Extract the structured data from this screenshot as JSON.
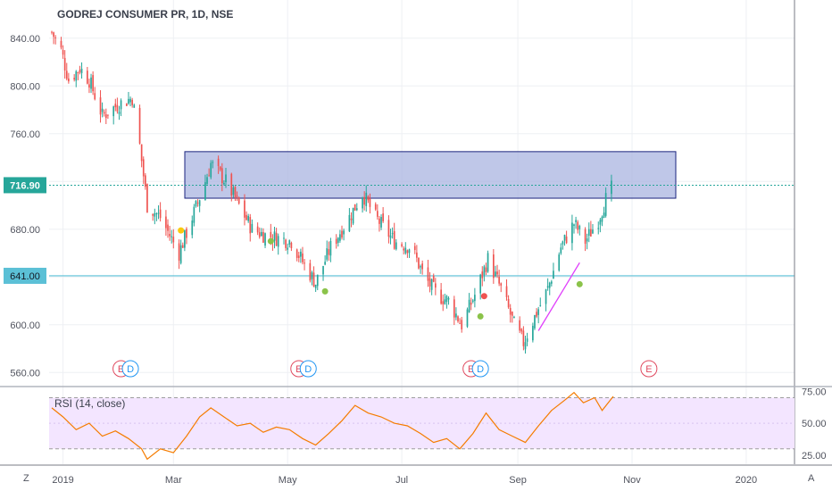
{
  "chart_title": "GODREJ CONSUMER PR, 1D, NSE",
  "rsi_title": "RSI (14, close)",
  "current_price_label": "716.90",
  "support_price_label": "641.00",
  "corner_left": "Z",
  "corner_right": "A",
  "colors": {
    "up": "#26a69a",
    "down": "#ef5350",
    "rsi_line": "#f57c00",
    "rsi_band": "#f3e5ff",
    "zone_fill": "#aab4e0",
    "zone_border": "#1a237e",
    "support_line": "#5bc0d6",
    "price_line": "#26a69a",
    "trend_line": "#e040fb"
  },
  "chart_data": [
    {
      "type": "candlestick",
      "title": "GODREJ CONSUMER PR, 1D, NSE",
      "y_ticks": [
        560,
        600,
        640,
        680,
        720,
        760,
        800,
        840
      ],
      "y_tick_labels": [
        "560.00",
        "600.00",
        "",
        "680.00",
        "",
        "760.00",
        "800.00",
        "840.00"
      ],
      "ylim": [
        549,
        872
      ],
      "x_tick_labels": [
        "2019",
        "Mar",
        "May",
        "Jul",
        "Sep",
        "Nov",
        "2020"
      ],
      "current_price": 716.9,
      "support_level": 641.0,
      "resistance_zone": {
        "low": 706,
        "high": 745
      },
      "close_path": [
        [
          "2018-12-26",
          845
        ],
        [
          "2018-12-31",
          830
        ],
        [
          "2019-01-04",
          805
        ],
        [
          "2019-01-10",
          815
        ],
        [
          "2019-01-15",
          805
        ],
        [
          "2019-01-22",
          775
        ],
        [
          "2019-01-31",
          785
        ],
        [
          "2019-02-07",
          790
        ],
        [
          "2019-02-11",
          750
        ],
        [
          "2019-02-15",
          700
        ],
        [
          "2019-02-22",
          690
        ],
        [
          "2019-03-04",
          660
        ],
        [
          "2019-03-11",
          690
        ],
        [
          "2019-03-17",
          715
        ],
        [
          "2019-03-21",
          735
        ],
        [
          "2019-03-29",
          720
        ],
        [
          "2019-04-05",
          700
        ],
        [
          "2019-04-12",
          680
        ],
        [
          "2019-04-19",
          675
        ],
        [
          "2019-05-03",
          670
        ],
        [
          "2019-05-10",
          650
        ],
        [
          "2019-05-16",
          635
        ],
        [
          "2019-05-24",
          665
        ],
        [
          "2019-06-03",
          690
        ],
        [
          "2019-06-10",
          710
        ],
        [
          "2019-06-17",
          690
        ],
        [
          "2019-06-27",
          670
        ],
        [
          "2019-07-06",
          665
        ],
        [
          "2019-07-13",
          640
        ],
        [
          "2019-07-20",
          625
        ],
        [
          "2019-07-26",
          620
        ],
        [
          "2019-08-02",
          600
        ],
        [
          "2019-08-09",
          625
        ],
        [
          "2019-08-16",
          655
        ],
        [
          "2019-08-23",
          630
        ],
        [
          "2019-08-30",
          600
        ],
        [
          "2019-09-04",
          585
        ],
        [
          "2019-09-11",
          610
        ],
        [
          "2019-09-17",
          630
        ],
        [
          "2019-09-24",
          665
        ],
        [
          "2019-10-01",
          685
        ],
        [
          "2019-10-07",
          670
        ],
        [
          "2019-10-14",
          688
        ],
        [
          "2019-10-18",
          705
        ],
        [
          "2019-10-22",
          716.9
        ]
      ],
      "markers": [
        {
          "date": "2019-03-05",
          "value": 679,
          "color": "#f9c90e"
        },
        {
          "date": "2019-04-22",
          "value": 670,
          "color": "#8bc34a"
        },
        {
          "date": "2019-05-21",
          "value": 628,
          "color": "#8bc34a"
        },
        {
          "date": "2019-08-14",
          "value": 624,
          "color": "#ef5350"
        },
        {
          "date": "2019-08-12",
          "value": 607,
          "color": "#8bc34a"
        },
        {
          "date": "2019-10-04",
          "value": 634,
          "color": "#8bc34a"
        }
      ],
      "events": [
        {
          "label": "E",
          "date": "2019-02-01",
          "color": "#e04a5f"
        },
        {
          "label": "D",
          "date": "2019-02-06",
          "color": "#2196f3"
        },
        {
          "label": "E",
          "date": "2019-05-07",
          "color": "#e04a5f"
        },
        {
          "label": "D",
          "date": "2019-05-12",
          "color": "#2196f3"
        },
        {
          "label": "E",
          "date": "2019-08-07",
          "color": "#e04a5f"
        },
        {
          "label": "D",
          "date": "2019-08-12",
          "color": "#2196f3"
        },
        {
          "label": "E",
          "date": "2019-11-10",
          "color": "#e04a5f"
        }
      ]
    },
    {
      "type": "line",
      "title": "RSI (14, close)",
      "y_ticks": [
        25,
        50,
        75
      ],
      "y_tick_labels": [
        "25.00",
        "50.00",
        "75.00"
      ],
      "ylim": [
        18,
        78
      ],
      "band": [
        30,
        70
      ],
      "series": [
        {
          "values": [
            [
              "2018-12-26",
              62
            ],
            [
              "2019-01-01",
              55
            ],
            [
              "2019-01-08",
              45
            ],
            [
              "2019-01-15",
              50
            ],
            [
              "2019-01-22",
              40
            ],
            [
              "2019-01-29",
              44
            ],
            [
              "2019-02-05",
              38
            ],
            [
              "2019-02-12",
              30
            ],
            [
              "2019-02-15",
              22
            ],
            [
              "2019-02-22",
              30
            ],
            [
              "2019-03-01",
              27
            ],
            [
              "2019-03-08",
              40
            ],
            [
              "2019-03-15",
              55
            ],
            [
              "2019-03-21",
              62
            ],
            [
              "2019-03-28",
              55
            ],
            [
              "2019-04-04",
              48
            ],
            [
              "2019-04-11",
              50
            ],
            [
              "2019-04-18",
              43
            ],
            [
              "2019-04-25",
              47
            ],
            [
              "2019-05-02",
              45
            ],
            [
              "2019-05-09",
              38
            ],
            [
              "2019-05-16",
              33
            ],
            [
              "2019-05-23",
              42
            ],
            [
              "2019-05-30",
              52
            ],
            [
              "2019-06-06",
              64
            ],
            [
              "2019-06-13",
              58
            ],
            [
              "2019-06-20",
              55
            ],
            [
              "2019-06-27",
              50
            ],
            [
              "2019-07-04",
              48
            ],
            [
              "2019-07-11",
              42
            ],
            [
              "2019-07-18",
              35
            ],
            [
              "2019-07-25",
              38
            ],
            [
              "2019-08-01",
              30
            ],
            [
              "2019-08-08",
              42
            ],
            [
              "2019-08-15",
              58
            ],
            [
              "2019-08-22",
              45
            ],
            [
              "2019-08-29",
              40
            ],
            [
              "2019-09-05",
              35
            ],
            [
              "2019-09-12",
              48
            ],
            [
              "2019-09-19",
              60
            ],
            [
              "2019-09-26",
              68
            ],
            [
              "2019-10-01",
              74
            ],
            [
              "2019-10-06",
              66
            ],
            [
              "2019-10-12",
              70
            ],
            [
              "2019-10-16",
              60
            ],
            [
              "2019-10-22",
              71
            ]
          ]
        }
      ]
    }
  ]
}
